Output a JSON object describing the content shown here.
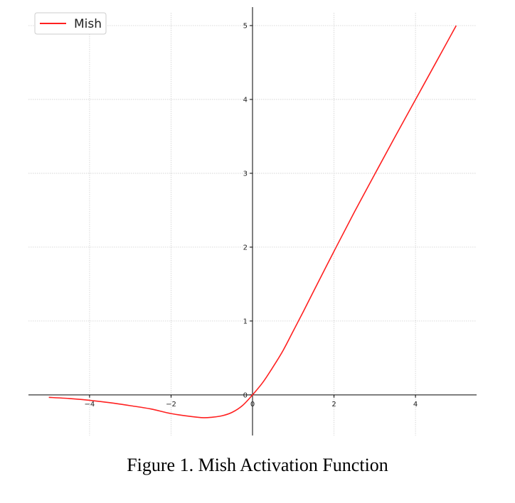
{
  "caption": "Figure 1.  Mish Activation Function",
  "chart_data": {
    "type": "line",
    "title": "",
    "xlabel": "",
    "ylabel": "",
    "xlim": [
      -5.5,
      5.5
    ],
    "ylim": [
      -0.55,
      5.25
    ],
    "x_ticks": [
      -4,
      -2,
      0,
      2,
      4
    ],
    "x_tick_labels": [
      "−4",
      "−2",
      "0",
      "2",
      "4"
    ],
    "y_ticks": [
      0,
      1,
      2,
      3,
      4,
      5
    ],
    "y_tick_labels": [
      "0",
      "1",
      "2",
      "3",
      "4",
      "5"
    ],
    "grid": true,
    "legend_position": "top-left",
    "series": [
      {
        "name": "Mish",
        "color": "#ff2020",
        "x": [
          -5,
          -4.5,
          -4,
          -3.5,
          -3,
          -2.5,
          -2,
          -1.5,
          -1.2,
          -1,
          -0.75,
          -0.5,
          -0.25,
          0,
          0.25,
          0.5,
          0.75,
          1,
          1.25,
          1.5,
          2,
          2.5,
          3,
          3.5,
          4,
          4.5,
          5
        ],
        "y": [
          -0.034,
          -0.049,
          -0.073,
          -0.106,
          -0.146,
          -0.19,
          -0.253,
          -0.293,
          -0.309,
          -0.303,
          -0.283,
          -0.236,
          -0.146,
          0,
          0.167,
          0.375,
          0.601,
          0.865,
          1.131,
          1.404,
          1.944,
          2.475,
          2.987,
          3.496,
          3.997,
          4.498,
          5.0
        ]
      }
    ]
  }
}
